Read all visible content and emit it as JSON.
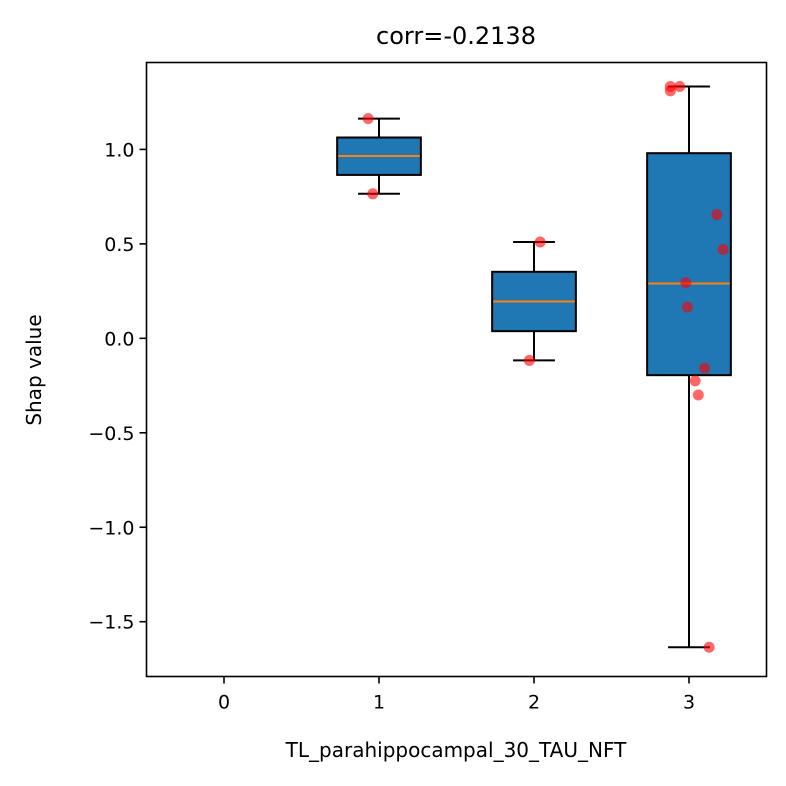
{
  "chart_data": {
    "type": "box",
    "title": "corr=-0.2138",
    "xlabel": "TL_parahippocampal_30_TAU_NFT",
    "ylabel": "Shap value",
    "xlim": [
      -0.5,
      3.5
    ],
    "ylim": [
      -1.79,
      1.46
    ],
    "xticks": [
      0,
      1,
      2,
      3
    ],
    "xtick_labels": [
      "0",
      "1",
      "2",
      "3"
    ],
    "yticks": [
      1.0,
      0.5,
      0.0,
      -0.5,
      -1.0,
      -1.5
    ],
    "ytick_labels": [
      "1.0",
      "0.5",
      "0.0",
      "−0.5",
      "−1.0",
      "−1.5"
    ],
    "grid": false,
    "box_color": "#1f77b4",
    "median_color": "#ff7f0e",
    "point_color": "#ff0000",
    "boxes": [
      {
        "x": 1,
        "whisker_low": 0.765,
        "q1": 0.865,
        "median": 0.965,
        "q3": 1.063,
        "whisker_high": 1.163
      },
      {
        "x": 2,
        "whisker_low": -0.117,
        "q1": 0.038,
        "median": 0.195,
        "q3": 0.352,
        "whisker_high": 0.51
      },
      {
        "x": 3,
        "whisker_low": -1.635,
        "q1": -0.195,
        "median": 0.29,
        "q3": 0.98,
        "whisker_high": 1.333
      }
    ],
    "points": [
      {
        "x": 0.93,
        "y": 1.163
      },
      {
        "x": 0.96,
        "y": 0.765
      },
      {
        "x": 1.97,
        "y": -0.117
      },
      {
        "x": 2.04,
        "y": 0.51
      },
      {
        "x": 2.88,
        "y": 1.333
      },
      {
        "x": 2.88,
        "y": 1.31
      },
      {
        "x": 2.94,
        "y": 1.333
      },
      {
        "x": 3.18,
        "y": 0.655
      },
      {
        "x": 3.22,
        "y": 0.47
      },
      {
        "x": 2.98,
        "y": 0.295
      },
      {
        "x": 2.99,
        "y": 0.165
      },
      {
        "x": 3.1,
        "y": -0.158
      },
      {
        "x": 3.04,
        "y": -0.225
      },
      {
        "x": 3.06,
        "y": -0.3
      },
      {
        "x": 3.13,
        "y": -1.635
      }
    ]
  }
}
